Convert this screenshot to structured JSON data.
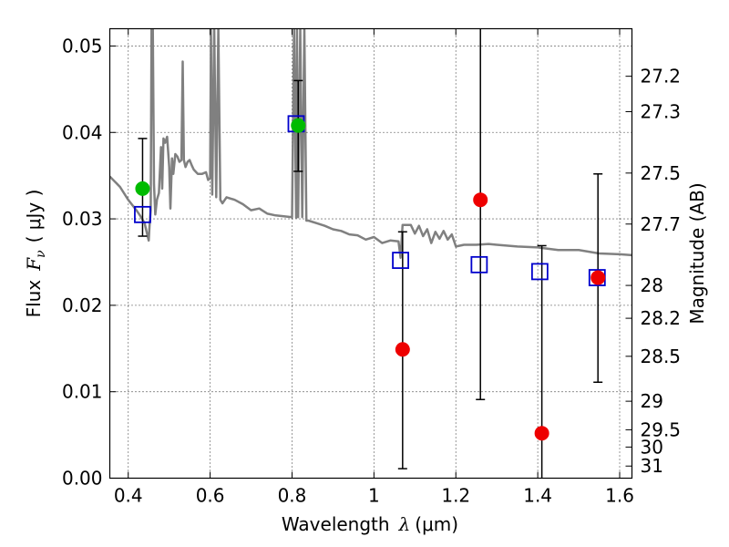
{
  "chart_data": {
    "type": "scatter",
    "xlabel": {
      "prefix": "Wavelength",
      "symbol": "λ",
      "unit": "(μm)"
    },
    "ylabel": {
      "prefix": "Flux",
      "symbol": "F",
      "subscript": "ν",
      "unit": "( μJy )"
    },
    "y2label": "Magnitude (AB)",
    "xlim": [
      0.355,
      1.63
    ],
    "ylim": [
      0.0,
      0.052
    ],
    "grid": true,
    "x_ticks": [
      0.4,
      0.6,
      0.8,
      1.0,
      1.2,
      1.4,
      1.6
    ],
    "x_tick_labels": [
      "0.4",
      "0.6",
      "0.8",
      "1",
      "1.2",
      "1.4",
      "1.6"
    ],
    "y_ticks": [
      0.0,
      0.01,
      0.02,
      0.03,
      0.04,
      0.05
    ],
    "y_tick_labels": [
      "0.00",
      "0.01",
      "0.02",
      "0.03",
      "0.04",
      "0.05"
    ],
    "y2_ticks": [
      {
        "label": "27.2",
        "flux": 0.0465
      },
      {
        "label": "27.3",
        "flux": 0.0424
      },
      {
        "label": "27.5",
        "flux": 0.0353
      },
      {
        "label": "27.7",
        "flux": 0.0294
      },
      {
        "label": "28",
        "flux": 0.0223
      },
      {
        "label": "28.2",
        "flux": 0.0185
      },
      {
        "label": "28.5",
        "flux": 0.0141
      },
      {
        "label": "29",
        "flux": 0.0089
      },
      {
        "label": "29.5",
        "flux": 0.0056
      },
      {
        "label": "30",
        "flux": 0.0036
      },
      {
        "label": "31",
        "flux": 0.0014
      }
    ],
    "model_sed": {
      "color": "#808080",
      "x": [
        0.355,
        0.38,
        0.4,
        0.42,
        0.43,
        0.44,
        0.445,
        0.45,
        0.452,
        0.455,
        0.457,
        0.46,
        0.463,
        0.466,
        0.47,
        0.475,
        0.48,
        0.483,
        0.486,
        0.49,
        0.495,
        0.5,
        0.503,
        0.507,
        0.51,
        0.515,
        0.52,
        0.525,
        0.53,
        0.533,
        0.536,
        0.54,
        0.545,
        0.55,
        0.555,
        0.56,
        0.57,
        0.58,
        0.59,
        0.595,
        0.6,
        0.602,
        0.605,
        0.61,
        0.615,
        0.62,
        0.625,
        0.63,
        0.64,
        0.66,
        0.68,
        0.7,
        0.72,
        0.74,
        0.76,
        0.78,
        0.8,
        0.805,
        0.81,
        0.812,
        0.815,
        0.82,
        0.825,
        0.83,
        0.835,
        0.84,
        0.86,
        0.88,
        0.9,
        0.92,
        0.94,
        0.96,
        0.98,
        1.0,
        1.02,
        1.04,
        1.06,
        1.065,
        1.07,
        1.09,
        1.1,
        1.11,
        1.12,
        1.13,
        1.14,
        1.15,
        1.16,
        1.17,
        1.18,
        1.19,
        1.2,
        1.22,
        1.25,
        1.28,
        1.3,
        1.35,
        1.4,
        1.45,
        1.5,
        1.55,
        1.6,
        1.63
      ],
      "y": [
        0.0349,
        0.0337,
        0.0322,
        0.031,
        0.0303,
        0.0295,
        0.0285,
        0.0275,
        0.0292,
        0.031,
        0.052,
        0.052,
        0.034,
        0.0305,
        0.0322,
        0.033,
        0.0383,
        0.0335,
        0.0393,
        0.0388,
        0.0395,
        0.036,
        0.0312,
        0.037,
        0.0352,
        0.0375,
        0.0372,
        0.0366,
        0.0368,
        0.0482,
        0.0368,
        0.036,
        0.0366,
        0.0368,
        0.0362,
        0.0357,
        0.0352,
        0.0352,
        0.0354,
        0.0345,
        0.0347,
        0.052,
        0.0328,
        0.052,
        0.0325,
        0.052,
        0.0322,
        0.0318,
        0.0325,
        0.0322,
        0.0317,
        0.031,
        0.0312,
        0.0306,
        0.0304,
        0.0303,
        0.0302,
        0.052,
        0.0301,
        0.052,
        0.0302,
        0.052,
        0.0302,
        0.052,
        0.0298,
        0.0298,
        0.0295,
        0.0292,
        0.0288,
        0.0286,
        0.0282,
        0.0281,
        0.0276,
        0.0279,
        0.0272,
        0.0275,
        0.0274,
        0.0255,
        0.0293,
        0.0293,
        0.0283,
        0.0292,
        0.028,
        0.0288,
        0.0272,
        0.0285,
        0.0277,
        0.0286,
        0.0276,
        0.0282,
        0.0268,
        0.027,
        0.027,
        0.0271,
        0.027,
        0.0268,
        0.0267,
        0.0264,
        0.0264,
        0.026,
        0.0259,
        0.0258
      ]
    },
    "series": [
      {
        "marker": "open-square",
        "color": "#0000cc",
        "x": [
          0.435,
          0.81,
          1.065,
          1.257,
          1.405,
          1.545
        ],
        "y": [
          0.0305,
          0.041,
          0.0252,
          0.0247,
          0.0239,
          0.0232
        ]
      },
      {
        "marker": "filled-circle",
        "color": "#00bb00",
        "x": [
          0.435,
          0.815
        ],
        "y": [
          0.0335,
          0.0408
        ],
        "yerr_low": [
          0.028,
          0.0355
        ],
        "yerr_high": [
          0.0393,
          0.046
        ]
      },
      {
        "marker": "filled-circle",
        "color": "#ee0000",
        "x": [
          1.07,
          1.26,
          1.41,
          1.547
        ],
        "y": [
          0.0149,
          0.0322,
          0.0052,
          0.0232
        ],
        "yerr_low": [
          0.0011,
          0.0091,
          0.0,
          0.0111
        ],
        "yerr_high": [
          0.0285,
          0.052,
          0.0269,
          0.0352
        ]
      }
    ]
  }
}
